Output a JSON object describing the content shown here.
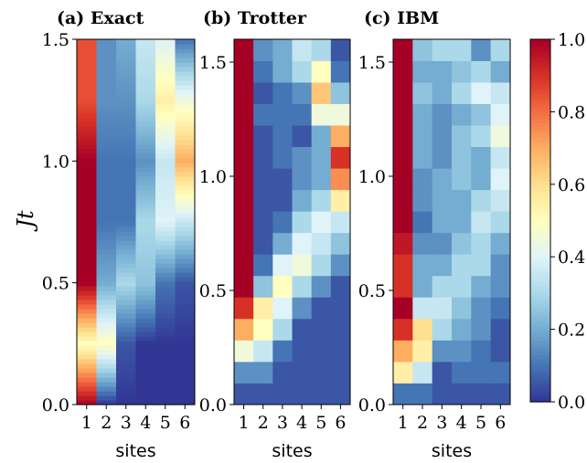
{
  "chart_data": [
    {
      "type": "heatmap",
      "title": "(a) Exact",
      "xlabel": "sites",
      "ylabel": "Jt",
      "x_ticks": [
        "1",
        "2",
        "3",
        "4",
        "5",
        "6"
      ],
      "y_ticks": [
        "0.0",
        "0.5",
        "1.0",
        "1.5"
      ],
      "ylim": [
        0,
        1.5
      ],
      "rows_time": [
        0.0,
        0.25,
        0.5,
        0.75,
        1.0,
        1.25,
        1.5
      ],
      "values": [
        [
          1.0,
          0.0,
          0.0,
          0.0,
          0.0,
          0.0
        ],
        [
          0.5,
          0.5,
          0.05,
          0.0,
          0.0,
          0.0
        ],
        [
          1.0,
          0.2,
          0.3,
          0.25,
          0.1,
          0.05
        ],
        [
          1.0,
          0.1,
          0.1,
          0.3,
          0.4,
          0.35
        ],
        [
          1.0,
          0.1,
          0.1,
          0.15,
          0.35,
          0.7
        ],
        [
          0.85,
          0.15,
          0.15,
          0.3,
          0.55,
          0.45
        ],
        [
          0.85,
          0.15,
          0.2,
          0.35,
          0.4,
          0.1
        ]
      ]
    },
    {
      "type": "heatmap",
      "title": "(b) Trotter",
      "xlabel": "sites",
      "x_ticks": [
        "1",
        "2",
        "3",
        "4",
        "5",
        "6"
      ],
      "y_ticks": [
        "0.0",
        "0.5",
        "1.0",
        "1.5"
      ],
      "ylim": [
        0,
        1.5
      ],
      "values": [
        [
          0.05,
          0.05,
          0.05,
          0.05,
          0.05,
          0.05
        ],
        [
          0.15,
          0.15,
          0.05,
          0.05,
          0.05,
          0.05
        ],
        [
          0.45,
          0.35,
          0.1,
          0.05,
          0.05,
          0.05
        ],
        [
          0.7,
          0.5,
          0.3,
          0.05,
          0.05,
          0.05
        ],
        [
          0.9,
          0.55,
          0.4,
          0.15,
          0.05,
          0.05
        ],
        [
          1.0,
          0.25,
          0.5,
          0.3,
          0.15,
          0.05
        ],
        [
          1.0,
          0.1,
          0.4,
          0.45,
          0.3,
          0.15
        ],
        [
          1.0,
          0.05,
          0.2,
          0.4,
          0.35,
          0.25
        ],
        [
          1.0,
          0.05,
          0.1,
          0.3,
          0.4,
          0.35
        ],
        [
          1.0,
          0.05,
          0.05,
          0.2,
          0.3,
          0.55
        ],
        [
          1.0,
          0.05,
          0.05,
          0.15,
          0.2,
          0.75
        ],
        [
          1.0,
          0.05,
          0.1,
          0.15,
          0.2,
          0.9
        ],
        [
          1.0,
          0.05,
          0.1,
          0.05,
          0.2,
          0.7
        ],
        [
          1.0,
          0.1,
          0.1,
          0.1,
          0.45,
          0.45
        ],
        [
          1.0,
          0.05,
          0.1,
          0.15,
          0.65,
          0.25
        ],
        [
          1.0,
          0.1,
          0.2,
          0.3,
          0.5,
          0.1
        ],
        [
          1.0,
          0.15,
          0.2,
          0.35,
          0.3,
          0.05
        ]
      ]
    },
    {
      "type": "heatmap",
      "title": "(c) IBM",
      "xlabel": "sites",
      "x_ticks": [
        "1",
        "2",
        "3",
        "4",
        "5",
        "6"
      ],
      "y_ticks": [
        "0.0",
        "0.5",
        "1.0",
        "1.5"
      ],
      "ylim": [
        0,
        1.5
      ],
      "colorbar": {
        "range": [
          0.0,
          1.0
        ],
        "ticks": [
          "0.0",
          "0.2",
          "0.4",
          "0.6",
          "0.8",
          "1.0"
        ],
        "colormap": "RdYlBu_r"
      },
      "values": [
        [
          0.1,
          0.1,
          0.05,
          0.05,
          0.05,
          0.05
        ],
        [
          0.55,
          0.35,
          0.05,
          0.1,
          0.1,
          0.1
        ],
        [
          0.7,
          0.55,
          0.15,
          0.15,
          0.1,
          0.05
        ],
        [
          0.9,
          0.6,
          0.3,
          0.2,
          0.15,
          0.05
        ],
        [
          1.0,
          0.35,
          0.35,
          0.25,
          0.15,
          0.1
        ],
        [
          0.9,
          0.2,
          0.3,
          0.3,
          0.2,
          0.15
        ],
        [
          0.9,
          0.2,
          0.2,
          0.3,
          0.3,
          0.15
        ],
        [
          0.95,
          0.15,
          0.15,
          0.25,
          0.3,
          0.2
        ],
        [
          1.0,
          0.1,
          0.2,
          0.2,
          0.35,
          0.3
        ],
        [
          1.0,
          0.15,
          0.2,
          0.2,
          0.3,
          0.35
        ],
        [
          1.0,
          0.15,
          0.2,
          0.25,
          0.2,
          0.4
        ],
        [
          1.0,
          0.2,
          0.15,
          0.25,
          0.2,
          0.35
        ],
        [
          1.0,
          0.2,
          0.15,
          0.25,
          0.3,
          0.45
        ],
        [
          1.0,
          0.2,
          0.15,
          0.2,
          0.25,
          0.4
        ],
        [
          1.0,
          0.25,
          0.2,
          0.3,
          0.4,
          0.35
        ],
        [
          1.0,
          0.2,
          0.2,
          0.25,
          0.3,
          0.2
        ],
        [
          1.0,
          0.25,
          0.3,
          0.3,
          0.15,
          0.3
        ]
      ]
    }
  ]
}
